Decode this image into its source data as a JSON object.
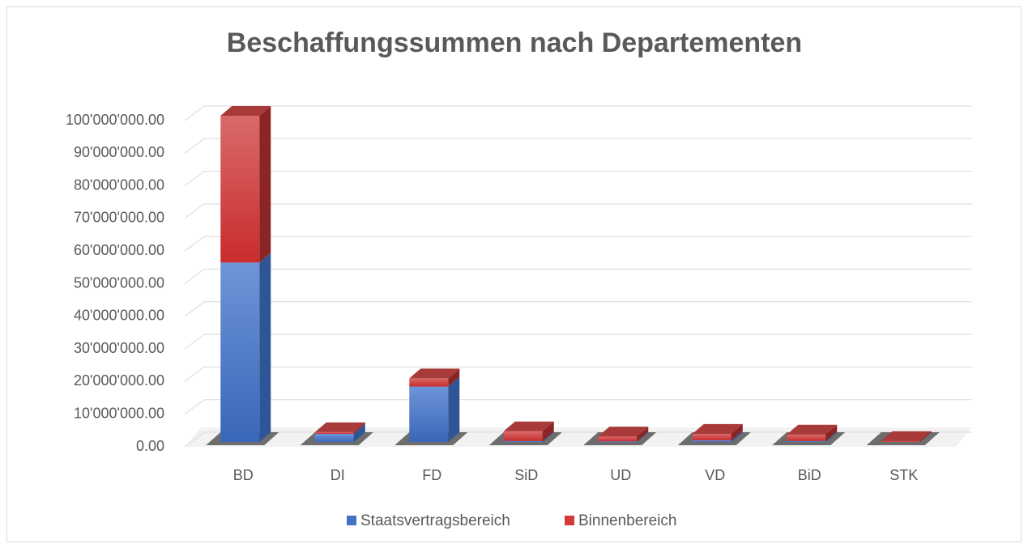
{
  "chart_data": {
    "type": "bar3d_stacked",
    "title": "Beschaffungssummen nach Departementen",
    "categories": [
      "BD",
      "DI",
      "FD",
      "SiD",
      "UD",
      "VD",
      "BiD",
      "STK"
    ],
    "series": [
      {
        "name": "Staatsvertragsbereich",
        "color": "#4472c4",
        "values": [
          55000000,
          2500000,
          17000000,
          300000,
          200000,
          500000,
          300000,
          0
        ]
      },
      {
        "name": "Binnenbereich",
        "color": "#d13b3b",
        "values": [
          45000000,
          500000,
          2500000,
          3000000,
          1500000,
          2000000,
          2000000,
          300000
        ]
      }
    ],
    "ylim": [
      0,
      100000000
    ],
    "yticks": [
      {
        "value": 0,
        "label": "0.00"
      },
      {
        "value": 10000000,
        "label": "10'000'000.00"
      },
      {
        "value": 20000000,
        "label": "20'000'000.00"
      },
      {
        "value": 30000000,
        "label": "30'000'000.00"
      },
      {
        "value": 40000000,
        "label": "40'000'000.00"
      },
      {
        "value": 50000000,
        "label": "50'000'000.00"
      },
      {
        "value": 60000000,
        "label": "60'000'000.00"
      },
      {
        "value": 70000000,
        "label": "70'000'000.00"
      },
      {
        "value": 80000000,
        "label": "80'000'000.00"
      },
      {
        "value": 90000000,
        "label": "90'000'000.00"
      },
      {
        "value": 100000000,
        "label": "100'000'000.00"
      }
    ],
    "grid": true,
    "legend": "bottom"
  }
}
